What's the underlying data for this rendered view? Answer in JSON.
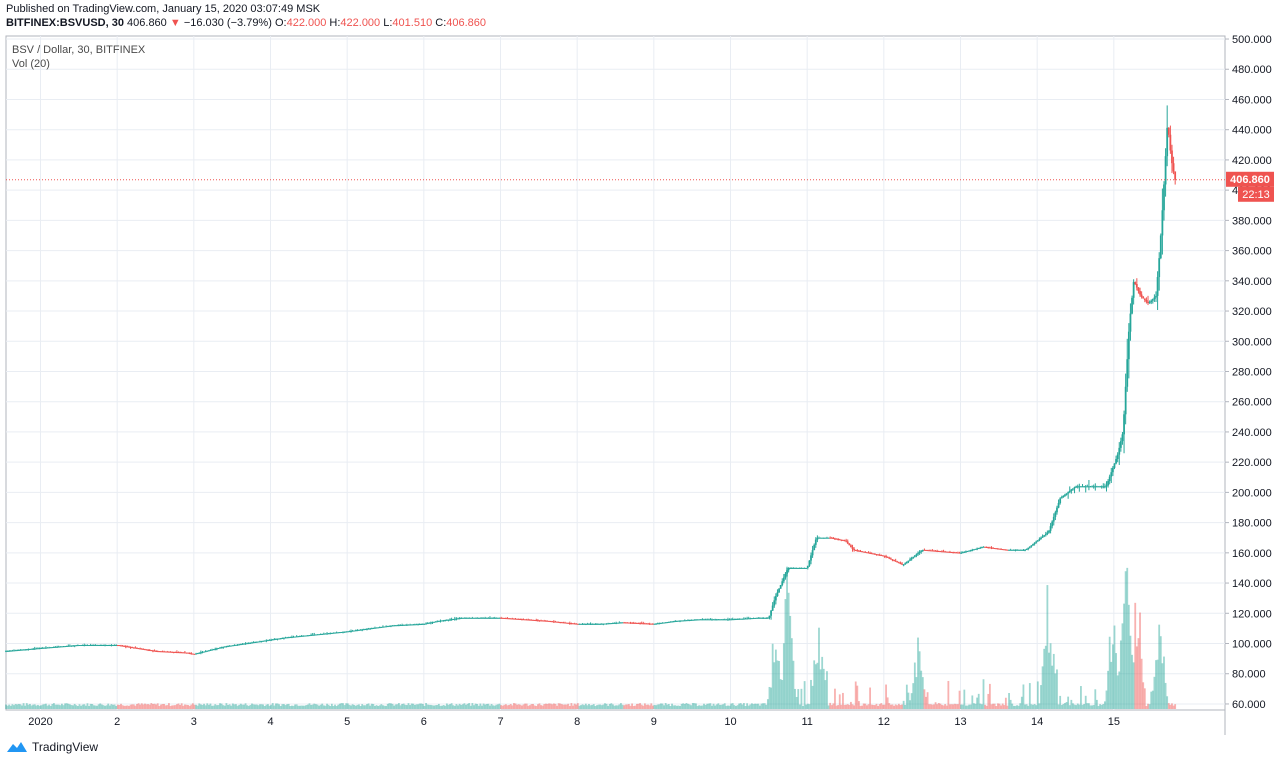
{
  "header": {
    "published": "Published on TradingView.com, January 15, 2020 03:07:49 MSK",
    "symbol": "BITFINEX:BSVUSD, 30",
    "last": "406.860",
    "change": "−16.030 (−3.79%)",
    "o_label": "O:",
    "o_value": "422.000",
    "h_label": "H:",
    "h_value": "422.000",
    "l_label": "L:",
    "l_value": "401.510",
    "c_label": "C:",
    "c_value": "406.860"
  },
  "legend": {
    "title": "BSV / Dollar, 30, BITFINEX",
    "volume": "Vol (20)"
  },
  "price_tag": {
    "value": "406.860",
    "countdown": "22:13"
  },
  "footer": {
    "brand": "TradingView"
  },
  "colors": {
    "up": "#26a69a",
    "down": "#ef5350",
    "grid": "#e9edf3"
  },
  "chart_data": {
    "type": "candlestick",
    "title": "BSV / Dollar, 30, BITFINEX",
    "indicator": "Vol (20)",
    "y_ticks": [
      "500.000",
      "480.000",
      "460.000",
      "440.000",
      "420.000",
      "400.000",
      "380.000",
      "360.000",
      "340.000",
      "320.000",
      "300.000",
      "280.000",
      "260.000",
      "240.000",
      "220.000",
      "200.000",
      "180.000",
      "160.000",
      "140.000",
      "120.000",
      "100.000",
      "80.000",
      "60.000"
    ],
    "ylim": [
      56,
      502
    ],
    "x_ticks": [
      "2020",
      "2",
      "3",
      "4",
      "5",
      "6",
      "7",
      "8",
      "9",
      "10",
      "11",
      "12",
      "13",
      "14",
      "15"
    ],
    "xlim": [
      0.55,
      16.45
    ],
    "last_price": 406.86,
    "series": [
      {
        "name": "BSV/USD close (approx)",
        "points": [
          [
            0.55,
            95
          ],
          [
            1.0,
            97
          ],
          [
            1.5,
            99
          ],
          [
            2.0,
            99
          ],
          [
            2.5,
            95
          ],
          [
            2.9,
            94
          ],
          [
            3.0,
            93
          ],
          [
            3.4,
            98
          ],
          [
            3.8,
            101
          ],
          [
            4.2,
            104
          ],
          [
            4.6,
            106
          ],
          [
            5.0,
            108
          ],
          [
            5.3,
            110
          ],
          [
            5.6,
            112
          ],
          [
            6.0,
            113
          ],
          [
            6.2,
            115
          ],
          [
            6.5,
            117
          ],
          [
            7.0,
            117
          ],
          [
            7.3,
            116
          ],
          [
            7.6,
            115
          ],
          [
            8.0,
            113
          ],
          [
            8.3,
            113
          ],
          [
            8.6,
            114
          ],
          [
            9.0,
            113
          ],
          [
            9.3,
            115
          ],
          [
            9.6,
            116
          ],
          [
            10.0,
            116
          ],
          [
            10.35,
            117
          ],
          [
            10.5,
            117
          ],
          [
            10.58,
            130
          ],
          [
            10.75,
            150
          ],
          [
            11.0,
            150
          ],
          [
            11.12,
            170
          ],
          [
            11.3,
            170
          ],
          [
            11.5,
            168
          ],
          [
            11.6,
            162
          ],
          [
            12.0,
            158
          ],
          [
            12.25,
            152
          ],
          [
            12.5,
            162
          ],
          [
            13.0,
            160
          ],
          [
            13.3,
            164
          ],
          [
            13.6,
            162
          ],
          [
            13.85,
            162
          ],
          [
            14.0,
            168
          ],
          [
            14.15,
            174
          ],
          [
            14.3,
            196
          ],
          [
            14.5,
            204
          ],
          [
            14.9,
            204
          ],
          [
            15.05,
            225
          ],
          [
            15.12,
            240
          ],
          [
            15.2,
            310
          ],
          [
            15.26,
            340
          ],
          [
            15.35,
            330
          ],
          [
            15.45,
            325
          ],
          [
            15.55,
            330
          ],
          [
            15.6,
            360
          ],
          [
            15.65,
            400
          ],
          [
            15.7,
            445
          ],
          [
            15.75,
            420
          ],
          [
            15.8,
            406.86
          ]
        ]
      },
      {
        "name": "Volume (relative)",
        "points": [
          [
            10.6,
            0.6
          ],
          [
            10.75,
            0.9
          ],
          [
            11.15,
            0.55
          ],
          [
            12.45,
            0.45
          ],
          [
            14.15,
            0.7
          ],
          [
            15.0,
            0.6
          ],
          [
            15.15,
            1.0
          ],
          [
            15.3,
            0.85
          ],
          [
            15.6,
            0.55
          ]
        ]
      }
    ],
    "grid": true
  }
}
